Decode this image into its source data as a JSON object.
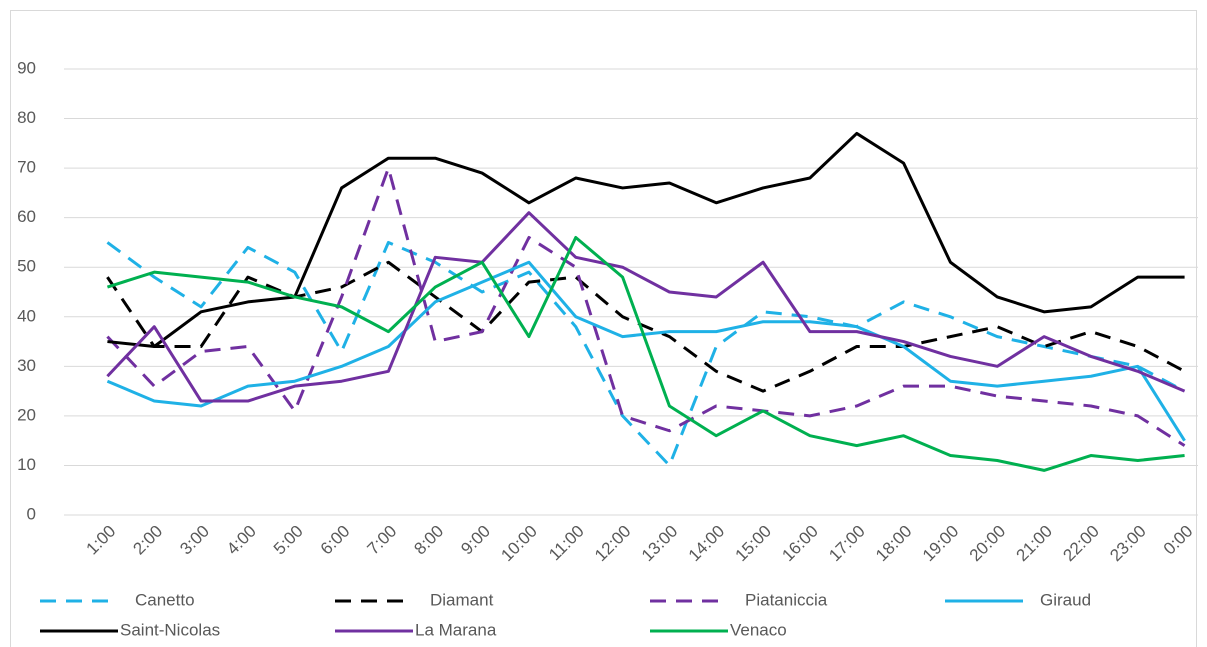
{
  "chart_data": {
    "type": "line",
    "categories": [
      "1:00",
      "2:00",
      "3:00",
      "4:00",
      "5:00",
      "6:00",
      "7:00",
      "8:00",
      "9:00",
      "10:00",
      "11:00",
      "12:00",
      "13:00",
      "14:00",
      "15:00",
      "16:00",
      "17:00",
      "18:00",
      "19:00",
      "20:00",
      "21:00",
      "22:00",
      "23:00",
      "0:00"
    ],
    "series": [
      {
        "name": "Canetto",
        "color": "#1fb1e6",
        "style": "dashed",
        "values": [
          55,
          48,
          42,
          54,
          49,
          33,
          55,
          51,
          45,
          49,
          38,
          20,
          10,
          34,
          41,
          40,
          38,
          43,
          40,
          36,
          34,
          32,
          30,
          25
        ]
      },
      {
        "name": "Diamant",
        "color": "#000000",
        "style": "dashed",
        "values": [
          48,
          34,
          34,
          48,
          44,
          46,
          51,
          44,
          37,
          47,
          48,
          40,
          36,
          29,
          25,
          29,
          34,
          34,
          36,
          38,
          34,
          37,
          34,
          29
        ]
      },
      {
        "name": "Piataniccia",
        "color": "#7030a0",
        "style": "dashed",
        "values": [
          36,
          26,
          33,
          34,
          21,
          44,
          70,
          35,
          37,
          56,
          50,
          20,
          17,
          22,
          21,
          20,
          22,
          26,
          26,
          24,
          23,
          22,
          20,
          14
        ]
      },
      {
        "name": "Giraud",
        "color": "#1fb1e6",
        "style": "solid",
        "values": [
          27,
          23,
          22,
          26,
          27,
          30,
          34,
          43,
          47,
          51,
          40,
          36,
          37,
          37,
          39,
          39,
          38,
          34,
          27,
          26,
          27,
          28,
          30,
          15
        ]
      },
      {
        "name": "Saint-Nicolas",
        "color": "#000000",
        "style": "solid",
        "values": [
          35,
          34,
          41,
          43,
          44,
          66,
          72,
          72,
          69,
          63,
          68,
          66,
          67,
          63,
          66,
          68,
          77,
          71,
          51,
          44,
          41,
          42,
          48,
          48
        ]
      },
      {
        "name": "La Marana",
        "color": "#7030a0",
        "style": "solid",
        "values": [
          28,
          38,
          23,
          23,
          26,
          27,
          29,
          52,
          51,
          61,
          52,
          50,
          45,
          44,
          51,
          37,
          37,
          35,
          32,
          30,
          36,
          32,
          29,
          25
        ]
      },
      {
        "name": "Venaco",
        "color": "#00b050",
        "style": "solid",
        "values": [
          46,
          49,
          48,
          47,
          44,
          42,
          37,
          46,
          51,
          36,
          56,
          48,
          22,
          16,
          21,
          16,
          14,
          16,
          12,
          11,
          9,
          12,
          11,
          12
        ]
      }
    ],
    "ylim": [
      0,
      90
    ],
    "yticks": [
      0,
      10,
      20,
      30,
      40,
      50,
      60,
      70,
      80,
      90
    ],
    "grid": true,
    "legend": "bottom"
  }
}
